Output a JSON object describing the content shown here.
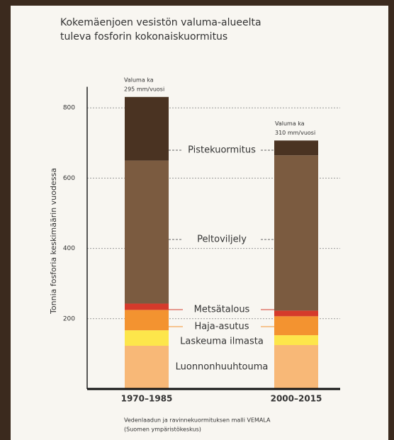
{
  "chart_data": {
    "type": "bar",
    "stacked": true,
    "title": [
      "Kokemäenjoen vesistön valuma-alueelta",
      "tuleva fosforin kokonaiskuormitus"
    ],
    "y_label": "Tonnia fosforia keskimäärin vuodessa",
    "categories": [
      "1970–1985",
      "2000–2015"
    ],
    "annotations": [
      [
        "Valuma ka",
        "295 mm/vuosi"
      ],
      [
        "Valuma ka",
        "310 mm/vuosi"
      ]
    ],
    "source": [
      "Vedenlaadun ja ravinnekuormituksen malli VEMALA",
      "(Suomen ympäristökeskus)"
    ],
    "series": [
      {
        "name": "Luonnonhuuhtouma",
        "color": "#f8b877",
        "values": [
          123,
          125
        ]
      },
      {
        "name": "Laskeuma ilmasta",
        "color": "#fde64b",
        "values": [
          44,
          28
        ]
      },
      {
        "name": "Haja-asutus",
        "color": "#f39330",
        "values": [
          58,
          54
        ]
      },
      {
        "name": "Metsätalous",
        "color": "#d53a2b",
        "values": [
          18,
          16
        ]
      },
      {
        "name": "Peltoviljely",
        "color": "#7b5b40",
        "values": [
          407,
          442
        ]
      },
      {
        "name": "Pistekuormitus",
        "color": "#4a3322",
        "values": [
          181,
          42
        ]
      }
    ],
    "ylim": [
      0,
      860
    ],
    "yticks": [
      200,
      400,
      600,
      800
    ],
    "grid": true
  }
}
